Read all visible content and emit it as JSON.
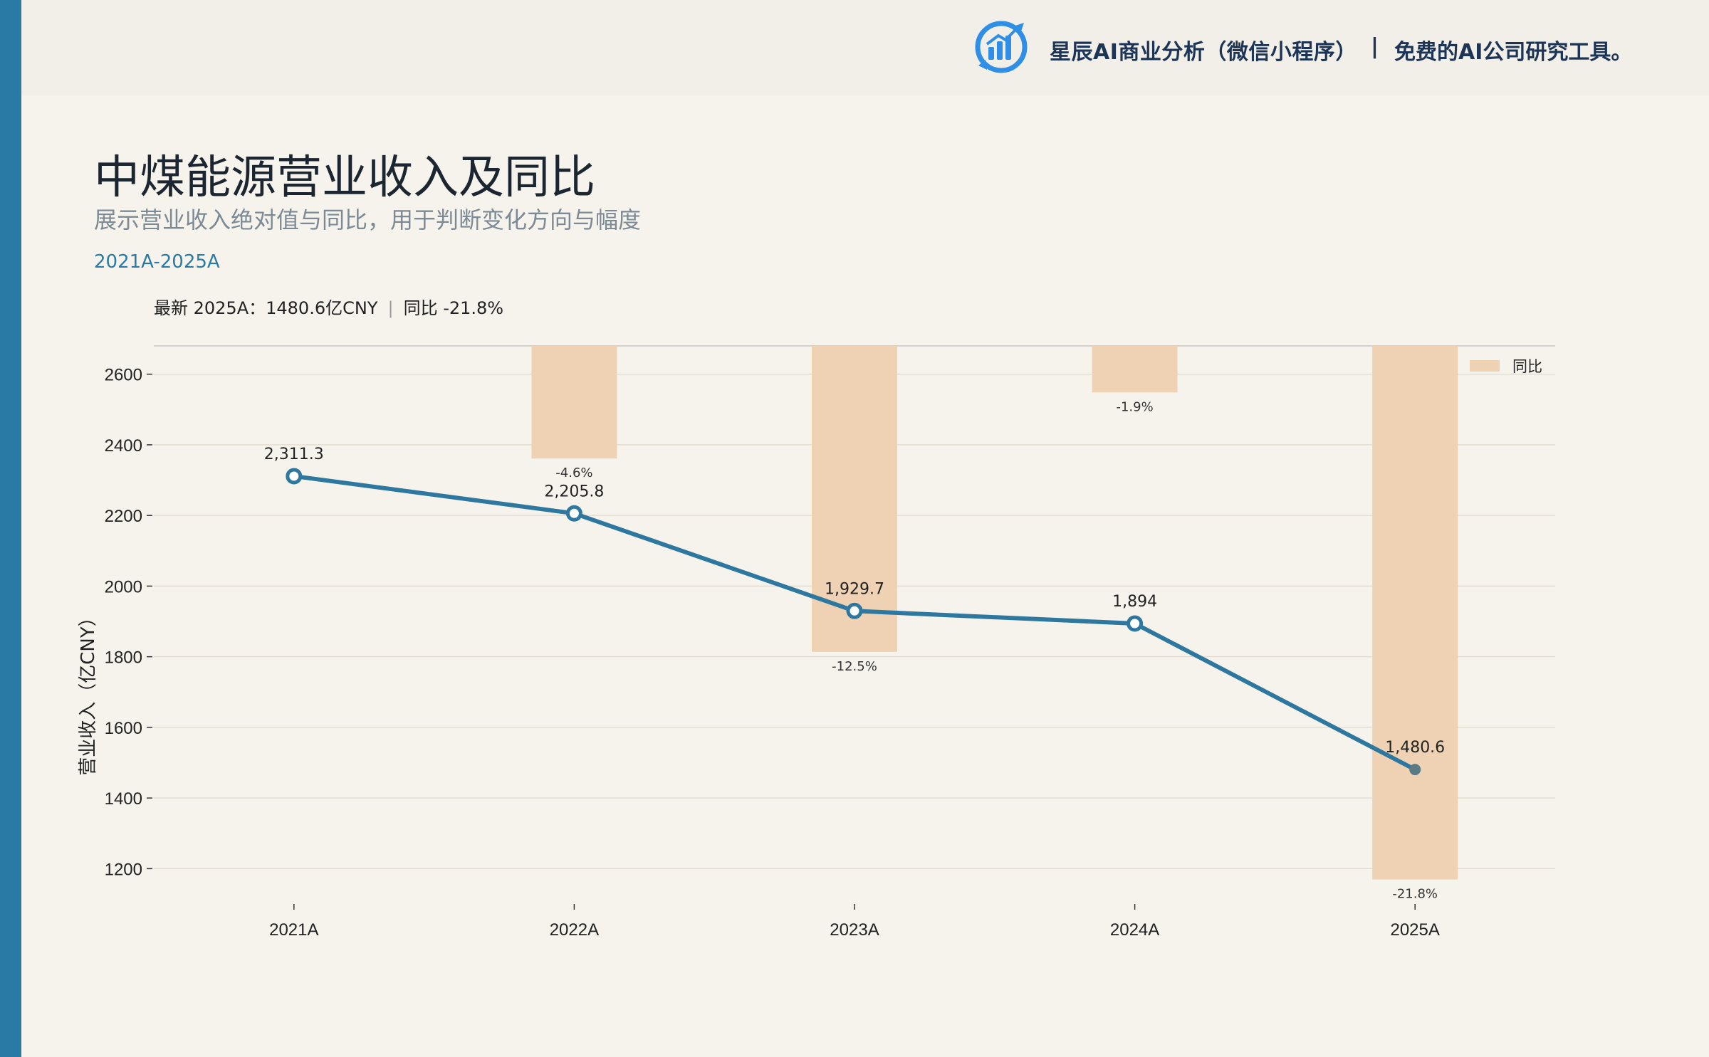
{
  "banner": {
    "brand_name": "星辰AI商业分析（微信小程序）",
    "separator": "|",
    "tagline": "免费的AI公司研究工具。"
  },
  "header": {
    "title": "中煤能源营业收入及同比",
    "subtitle": "展示营业收入绝对值与同比，用于判断变化方向与幅度",
    "range": "2021A-2025A",
    "latest": "最新 2025A：1480.6亿CNY",
    "separator": "|",
    "yoy": "同比 -21.8%"
  },
  "colors": {
    "accent": "#2a7aa6",
    "line": "#2e78a0",
    "bar": "#efd2b4",
    "last_point": "#5a7a86",
    "background": "#f6f3ec"
  },
  "chart_data": {
    "type": "bar+line",
    "categories": [
      "2021A",
      "2022A",
      "2023A",
      "2024A",
      "2025A"
    ],
    "series": [
      {
        "kind": "line",
        "values": [
          2311.3,
          2205.8,
          1929.7,
          1894,
          1480.6
        ],
        "value_labels": [
          "2,311.3",
          "2,205.8",
          "1,929.7",
          "1,894",
          "1,480.6"
        ]
      },
      {
        "name": "同比",
        "kind": "bar",
        "values": [
          null,
          -4.6,
          -12.5,
          -1.9,
          -21.8
        ],
        "value_labels": [
          "",
          "-4.6%",
          "-12.5%",
          "-1.9%",
          "-21.8%"
        ]
      }
    ],
    "ylabel": "营业收入（亿CNY）",
    "ylim": [
      1100,
      2680
    ],
    "yticks": [
      1200,
      1400,
      1600,
      1800,
      2000,
      2200,
      2400,
      2600
    ],
    "y2lim": [
      -22.8,
      0
    ],
    "grid": true,
    "legend": "top-right"
  }
}
